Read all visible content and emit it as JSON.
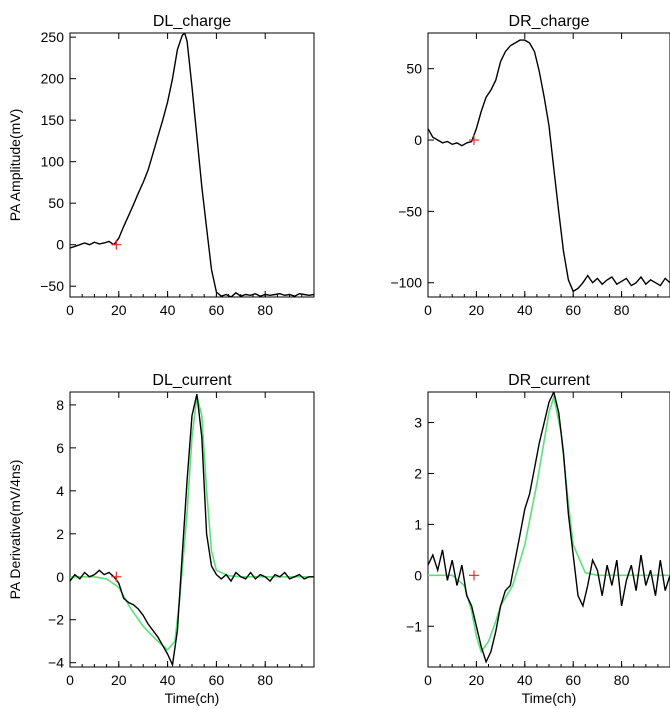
{
  "figure": {
    "colors": {
      "signal": "#000000",
      "fit": "#5be07a",
      "marker": "#e0302a",
      "axis": "#000000"
    }
  },
  "chart_data": [
    {
      "type": "line",
      "title": "DL_charge",
      "xlabel": "",
      "ylabel": "PA Amplitude(mV)",
      "xlim": [
        0,
        100
      ],
      "ylim": [
        -63,
        255
      ],
      "xticks": [
        0,
        20,
        40,
        60,
        80
      ],
      "yticks": [
        -50,
        0,
        50,
        100,
        150,
        200,
        250
      ],
      "marker": {
        "x": 19,
        "y": 0
      },
      "series": [
        {
          "role": "signal",
          "x": [
            0,
            2,
            4,
            6,
            8,
            10,
            12,
            14,
            16,
            18,
            20,
            22,
            24,
            26,
            28,
            30,
            32,
            34,
            36,
            38,
            40,
            42,
            44,
            46,
            47,
            48,
            50,
            52,
            54,
            56,
            58,
            60,
            62,
            64,
            66,
            68,
            70,
            72,
            74,
            76,
            78,
            80,
            82,
            84,
            86,
            88,
            90,
            92,
            94,
            96,
            98,
            100
          ],
          "y": [
            -4,
            -2,
            0,
            2,
            0,
            3,
            1,
            2,
            4,
            0,
            8,
            22,
            35,
            48,
            62,
            75,
            90,
            110,
            130,
            150,
            172,
            200,
            235,
            252,
            255,
            245,
            190,
            130,
            70,
            20,
            -30,
            -57,
            -62,
            -60,
            -63,
            -58,
            -62,
            -60,
            -61,
            -59,
            -62,
            -60,
            -61,
            -60,
            -59,
            -61,
            -60,
            -62,
            -59,
            -60,
            -61,
            -60
          ]
        }
      ]
    },
    {
      "type": "line",
      "title": "DR_charge",
      "xlabel": "",
      "ylabel": "",
      "xlim": [
        0,
        100
      ],
      "ylim": [
        -110,
        75
      ],
      "xticks": [
        0,
        20,
        40,
        60,
        80
      ],
      "yticks": [
        -100,
        -50,
        0,
        50
      ],
      "marker": {
        "x": 19,
        "y": 0
      },
      "series": [
        {
          "role": "signal",
          "x": [
            0,
            2,
            4,
            6,
            8,
            10,
            12,
            14,
            16,
            18,
            20,
            22,
            24,
            26,
            28,
            30,
            32,
            34,
            36,
            38,
            40,
            42,
            44,
            46,
            48,
            50,
            52,
            54,
            56,
            58,
            60,
            62,
            64,
            66,
            68,
            70,
            72,
            74,
            76,
            78,
            80,
            82,
            84,
            86,
            88,
            90,
            92,
            94,
            96,
            98,
            100
          ],
          "y": [
            8,
            2,
            0,
            -2,
            -1,
            -3,
            -2,
            -4,
            -2,
            -1,
            8,
            20,
            30,
            35,
            42,
            55,
            62,
            66,
            68,
            70,
            70,
            68,
            62,
            48,
            30,
            10,
            -20,
            -50,
            -78,
            -98,
            -106,
            -104,
            -100,
            -95,
            -100,
            -97,
            -101,
            -98,
            -96,
            -101,
            -99,
            -97,
            -102,
            -100,
            -96,
            -101,
            -98,
            -100,
            -102,
            -97,
            -100
          ]
        }
      ]
    },
    {
      "type": "line",
      "title": "DL_current",
      "xlabel": "Time(ch)",
      "ylabel": "PA Derivative(mV/4ns)",
      "xlim": [
        0,
        100
      ],
      "ylim": [
        -4.2,
        8.6
      ],
      "xticks": [
        0,
        20,
        40,
        60,
        80
      ],
      "yticks": [
        -4,
        -2,
        0,
        2,
        4,
        6,
        8
      ],
      "marker": {
        "x": 19,
        "y": 0
      },
      "series": [
        {
          "role": "signal",
          "x": [
            0,
            2,
            4,
            6,
            8,
            10,
            12,
            14,
            16,
            18,
            20,
            22,
            24,
            26,
            28,
            30,
            32,
            34,
            36,
            38,
            40,
            42,
            44,
            46,
            48,
            50,
            52,
            54,
            56,
            58,
            60,
            62,
            64,
            66,
            68,
            70,
            72,
            74,
            76,
            78,
            80,
            82,
            84,
            86,
            88,
            90,
            92,
            94,
            96,
            98,
            100
          ],
          "y": [
            -0.2,
            0.1,
            -0.1,
            0.2,
            0,
            0.1,
            0.3,
            0.1,
            0.2,
            0,
            -0.3,
            -1.0,
            -1.2,
            -1.3,
            -1.5,
            -1.8,
            -2.2,
            -2.5,
            -2.8,
            -3.2,
            -3.6,
            -4.1,
            -2.5,
            1.0,
            4.5,
            7.5,
            8.5,
            6.5,
            2.0,
            0.5,
            0.1,
            -0.1,
            0.1,
            -0.2,
            0.2,
            0,
            -0.1,
            0.2,
            -0.1,
            0.1,
            0,
            -0.2,
            0.1,
            0,
            0.2,
            -0.1,
            0,
            0.1,
            -0.1,
            0,
            0
          ]
        },
        {
          "role": "fit",
          "x": [
            0,
            5,
            10,
            15,
            20,
            25,
            30,
            35,
            40,
            43,
            45,
            48,
            50,
            52,
            54,
            56,
            58,
            60,
            65,
            70,
            80,
            90,
            100
          ],
          "y": [
            0,
            0,
            0,
            -0.1,
            -0.5,
            -1.5,
            -2.3,
            -2.9,
            -3.4,
            -3.0,
            -1.0,
            3.0,
            6.5,
            8.4,
            7.5,
            4.0,
            1.2,
            0.3,
            0.05,
            0,
            0,
            0,
            0
          ]
        }
      ]
    },
    {
      "type": "line",
      "title": "DR_current",
      "xlabel": "Time(ch)",
      "ylabel": "",
      "xlim": [
        0,
        100
      ],
      "ylim": [
        -1.8,
        3.6
      ],
      "xticks": [
        0,
        20,
        40,
        60,
        80
      ],
      "yticks": [
        -1,
        0,
        1,
        2,
        3
      ],
      "marker": {
        "x": 19,
        "y": 0
      },
      "series": [
        {
          "role": "signal",
          "x": [
            0,
            2,
            4,
            6,
            8,
            10,
            12,
            14,
            16,
            18,
            20,
            22,
            24,
            26,
            28,
            30,
            32,
            34,
            36,
            38,
            40,
            42,
            44,
            46,
            48,
            50,
            52,
            54,
            56,
            58,
            60,
            62,
            64,
            66,
            68,
            70,
            72,
            74,
            76,
            78,
            80,
            82,
            84,
            86,
            88,
            90,
            92,
            94,
            96,
            98,
            100
          ],
          "y": [
            0.2,
            0.4,
            0.1,
            0.5,
            -0.1,
            0.3,
            -0.2,
            0.2,
            -0.4,
            -0.6,
            -1.0,
            -1.4,
            -1.7,
            -1.5,
            -1.1,
            -0.6,
            -0.3,
            -0.2,
            0.3,
            0.8,
            1.3,
            1.6,
            2.1,
            2.6,
            3.0,
            3.4,
            3.6,
            3.2,
            2.4,
            1.2,
            0.4,
            -0.4,
            -0.6,
            -0.2,
            0.3,
            0.1,
            -0.4,
            0.2,
            -0.2,
            0.3,
            -0.6,
            -0.1,
            0.2,
            -0.3,
            0.4,
            -0.2,
            0.1,
            -0.4,
            0.3,
            -0.3,
            0
          ]
        },
        {
          "role": "fit",
          "x": [
            0,
            5,
            10,
            15,
            18,
            20,
            22,
            25,
            28,
            30,
            35,
            40,
            45,
            50,
            52,
            55,
            58,
            60,
            65,
            70,
            80,
            90,
            100
          ],
          "y": [
            0,
            0,
            0,
            -0.2,
            -0.7,
            -1.2,
            -1.5,
            -1.3,
            -0.9,
            -0.6,
            -0.2,
            0.6,
            1.8,
            3.2,
            3.5,
            2.8,
            1.4,
            0.6,
            0.05,
            0,
            0,
            0,
            0
          ]
        }
      ]
    }
  ]
}
